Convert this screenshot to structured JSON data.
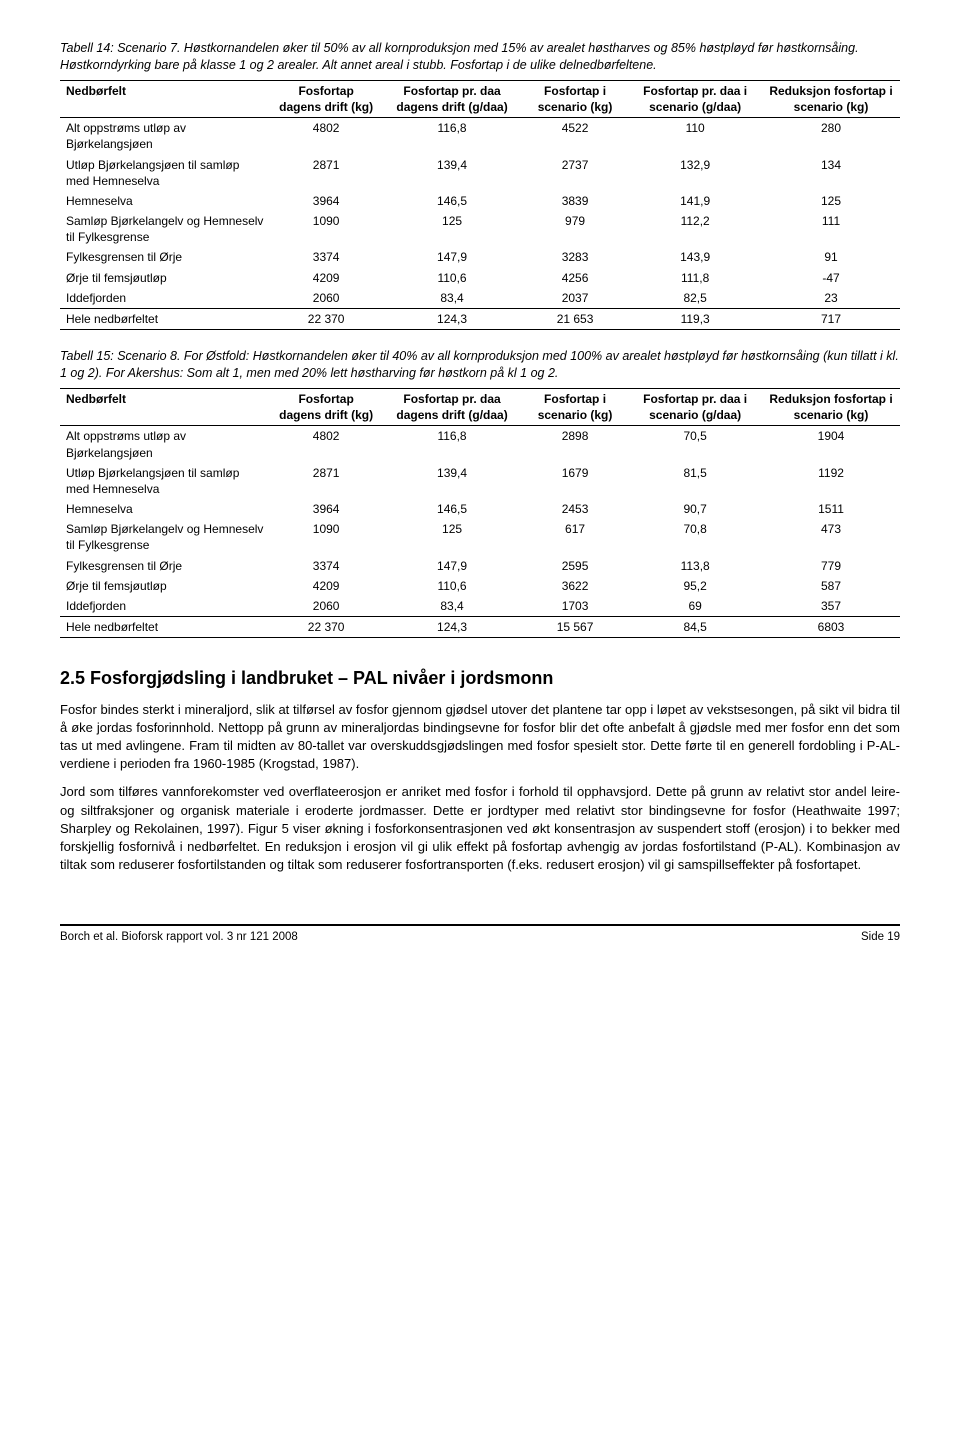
{
  "caption1": "Tabell 14: Scenario 7. Høstkornandelen øker til 50% av all kornproduksjon med 15% av arealet høstharves og 85% høstpløyd før høstkornsåing. Høstkorndyrking bare på klasse 1 og 2 arealer. Alt annet areal i stubb. Fosfortap i de ulike delnedbørfeltene.",
  "headers": {
    "h0": "Nedbørfelt",
    "h1": "Fosfortap dagens drift (kg)",
    "h2": "Fosfortap pr. daa dagens drift (g/daa)",
    "h3": "Fosfortap i scenario (kg)",
    "h4": "Fosfortap pr. daa i scenario (g/daa)",
    "h5": "Reduksjon fosfortap i scenario (kg)"
  },
  "t1": {
    "r0": {
      "c0": "Alt oppstrøms utløp av Bjørkelangsjøen",
      "c1": "4802",
      "c2": "116,8",
      "c3": "4522",
      "c4": "110",
      "c5": "280"
    },
    "r1": {
      "c0": "Utløp Bjørkelangsjøen til samløp med Hemneselva",
      "c1": "2871",
      "c2": "139,4",
      "c3": "2737",
      "c4": "132,9",
      "c5": "134"
    },
    "r2": {
      "c0": "Hemneselva",
      "c1": "3964",
      "c2": "146,5",
      "c3": "3839",
      "c4": "141,9",
      "c5": "125"
    },
    "r3": {
      "c0": "Samløp Bjørkelangelv og Hemneselv til Fylkesgrense",
      "c1": "1090",
      "c2": "125",
      "c3": "979",
      "c4": "112,2",
      "c5": "111"
    },
    "r4": {
      "c0": "Fylkesgrensen til Ørje",
      "c1": "3374",
      "c2": "147,9",
      "c3": "3283",
      "c4": "143,9",
      "c5": "91"
    },
    "r5": {
      "c0": "Ørje til femsjøutløp",
      "c1": "4209",
      "c2": "110,6",
      "c3": "4256",
      "c4": "111,8",
      "c5": "-47"
    },
    "r6": {
      "c0": "Iddefjorden",
      "c1": "2060",
      "c2": "83,4",
      "c3": "2037",
      "c4": "82,5",
      "c5": "23"
    },
    "total": {
      "c0": "Hele nedbørfeltet",
      "c1": "22 370",
      "c2": "124,3",
      "c3": "21 653",
      "c4": "119,3",
      "c5": "717"
    }
  },
  "caption2": "Tabell 15: Scenario 8. For Østfold: Høstkornandelen øker til 40% av all kornproduksjon med 100% av arealet høstpløyd før høstkornsåing (kun tillatt i kl. 1 og 2). For Akershus: Som alt 1, men med 20% lett høstharving før høstkorn på kl 1 og 2.",
  "t2": {
    "r0": {
      "c0": "Alt oppstrøms utløp av Bjørkelangsjøen",
      "c1": "4802",
      "c2": "116,8",
      "c3": "2898",
      "c4": "70,5",
      "c5": "1904"
    },
    "r1": {
      "c0": "Utløp Bjørkelangsjøen til samløp med Hemneselva",
      "c1": "2871",
      "c2": "139,4",
      "c3": "1679",
      "c4": "81,5",
      "c5": "1192"
    },
    "r2": {
      "c0": "Hemneselva",
      "c1": "3964",
      "c2": "146,5",
      "c3": "2453",
      "c4": "90,7",
      "c5": "1511"
    },
    "r3": {
      "c0": "Samløp Bjørkelangelv og Hemneselv til Fylkesgrense",
      "c1": "1090",
      "c2": "125",
      "c3": "617",
      "c4": "70,8",
      "c5": "473"
    },
    "r4": {
      "c0": "Fylkesgrensen til Ørje",
      "c1": "3374",
      "c2": "147,9",
      "c3": "2595",
      "c4": "113,8",
      "c5": "779"
    },
    "r5": {
      "c0": "Ørje til femsjøutløp",
      "c1": "4209",
      "c2": "110,6",
      "c3": "3622",
      "c4": "95,2",
      "c5": "587"
    },
    "r6": {
      "c0": "Iddefjorden",
      "c1": "2060",
      "c2": "83,4",
      "c3": "1703",
      "c4": "69",
      "c5": "357"
    },
    "total": {
      "c0": "Hele nedbørfeltet",
      "c1": "22 370",
      "c2": "124,3",
      "c3": "15 567",
      "c4": "84,5",
      "c5": "6803"
    }
  },
  "section_title": "2.5  Fosforgjødsling i landbruket – PAL nivåer i jordsmonn",
  "para1": "Fosfor bindes sterkt i mineraljord, slik at tilførsel av fosfor gjennom gjødsel utover det plantene tar opp i løpet av vekstsesongen, på sikt vil bidra til å øke jordas fosforinnhold. Nettopp på grunn av mineraljordas bindingsevne for fosfor blir det ofte anbefalt å gjødsle med mer fosfor enn det som tas ut med avlingene. Fram til midten av 80-tallet var overskuddsgjødslingen med fosfor spesielt stor. Dette førte til en generell fordobling i P-AL-verdiene i perioden fra 1960-1985 (Krogstad, 1987).",
  "para2": "Jord som tilføres vannforekomster ved overflateerosjon er anriket med fosfor i forhold til opphavsjord. Dette på grunn av relativt stor andel leire- og siltfraksjoner og organisk materiale i eroderte jordmasser. Dette er jordtyper med relativt stor bindingsevne for fosfor (Heathwaite 1997; Sharpley og Rekolainen, 1997). Figur 5 viser økning i fosforkonsentrasjonen ved økt konsentrasjon av suspendert stoff (erosjon) i to bekker med forskjellig fosfornivå i nedbørfeltet. En reduksjon i erosjon vil gi ulik effekt på fosfortap avhengig av jordas fosfortilstand (P-AL). Kombinasjon av tiltak som reduserer fosfortilstanden og tiltak som reduserer fosfortransporten (f.eks. redusert erosjon) vil gi samspillseffekter på fosfortapet.",
  "footer_left": "Borch et al. Bioforsk rapport vol. 3 nr 121 2008",
  "footer_right": "Side 19"
}
